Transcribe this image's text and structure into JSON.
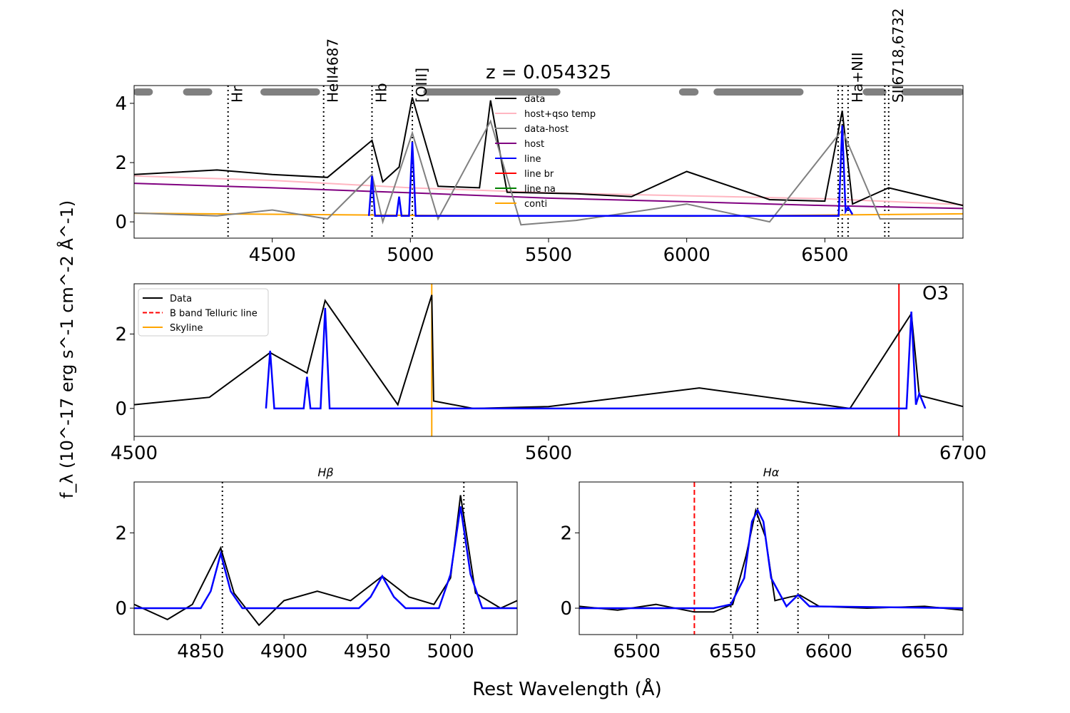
{
  "figure": {
    "ylabel": "f_λ (10^-17 erg s^-1 cm^-2 Å^-1)",
    "xlabel": "Rest Wavelength (Å)"
  },
  "chart_data": [
    {
      "type": "line",
      "title": "z = 0.054325",
      "xlim": [
        4000,
        7000
      ],
      "ylim": [
        -0.55,
        4.6
      ],
      "xticks": [
        4500,
        5000,
        5500,
        6000,
        6500
      ],
      "yticks": [
        0,
        2,
        4
      ],
      "legend_position": "upper-center",
      "legend": [
        {
          "name": "data",
          "color": "#000000"
        },
        {
          "name": "host+qso temp",
          "color": "#ffb6c1"
        },
        {
          "name": "data-host",
          "color": "#808080"
        },
        {
          "name": "host",
          "color": "#800080"
        },
        {
          "name": "line",
          "color": "#0000ff"
        },
        {
          "name": "line br",
          "color": "#ff0000"
        },
        {
          "name": "line na",
          "color": "#008000"
        },
        {
          "name": "conti",
          "color": "#ffa500"
        }
      ],
      "line_markers": [
        {
          "label": "Hr",
          "x": [
            4340
          ]
        },
        {
          "label": "HeII4687",
          "x": [
            4686
          ]
        },
        {
          "label": "Hb",
          "x": [
            4861
          ]
        },
        {
          "label": "[OIII]",
          "x": [
            5007
          ]
        },
        {
          "label": "Ha+NII",
          "x": [
            6548,
            6563,
            6584
          ]
        },
        {
          "label": "SII6718,6732",
          "x": [
            6717,
            6731
          ]
        }
      ],
      "masked_regions": [
        [
          4010,
          4055
        ],
        [
          4190,
          4270
        ],
        [
          4470,
          4660
        ],
        [
          5060,
          5530
        ],
        [
          5985,
          6030
        ],
        [
          6110,
          6410
        ],
        [
          6650,
          6710
        ],
        [
          6790,
          6990
        ]
      ],
      "series": [
        {
          "name": "conti",
          "color": "#ffa500",
          "x": [
            4000,
            5000,
            6000,
            7000
          ],
          "y": [
            0.29,
            0.22,
            0.19,
            0.27
          ]
        },
        {
          "name": "host",
          "color": "#800080",
          "x": [
            4000,
            4500,
            5000,
            5500,
            6000,
            6500,
            7000
          ],
          "y": [
            1.3,
            1.15,
            0.98,
            0.8,
            0.68,
            0.55,
            0.45
          ]
        },
        {
          "name": "host+qso temp",
          "color": "#ffb6c1",
          "x": [
            4000,
            4500,
            5000,
            5500,
            6000,
            6500,
            7000
          ],
          "y": [
            1.55,
            1.4,
            1.15,
            0.98,
            0.88,
            0.78,
            0.58
          ]
        },
        {
          "name": "data",
          "color": "#000000",
          "x": [
            4000,
            4300,
            4500,
            4700,
            4861,
            4900,
            4959,
            5007,
            5100,
            5250,
            5290,
            5350,
            5600,
            5800,
            6000,
            6300,
            6500,
            6563,
            6600,
            6731,
            7000
          ],
          "y": [
            1.6,
            1.75,
            1.6,
            1.5,
            2.75,
            1.35,
            1.85,
            4.2,
            1.2,
            1.15,
            4.1,
            1.0,
            0.95,
            0.85,
            1.7,
            0.75,
            0.7,
            3.75,
            0.6,
            1.15,
            0.55
          ]
        },
        {
          "name": "data-host",
          "color": "#808080",
          "x": [
            4000,
            4300,
            4500,
            4700,
            4861,
            4900,
            5007,
            5100,
            5290,
            5400,
            5600,
            6000,
            6300,
            6563,
            6700,
            7000
          ],
          "y": [
            0.3,
            0.2,
            0.4,
            0.1,
            1.6,
            0.0,
            3.0,
            0.1,
            3.4,
            -0.1,
            0.05,
            0.6,
            0.0,
            3.1,
            0.1,
            0.1
          ]
        },
        {
          "name": "line",
          "color": "#0000ff",
          "x": [
            4850,
            4861,
            4872,
            4950,
            4959,
            4968,
            4995,
            5007,
            5019,
            6550,
            6563,
            6575,
            6584,
            6600
          ],
          "y": [
            0.2,
            1.55,
            0.2,
            0.2,
            0.85,
            0.2,
            0.2,
            2.7,
            0.2,
            0.2,
            3.25,
            0.35,
            0.5,
            0.25
          ]
        }
      ]
    },
    {
      "type": "line",
      "title": "O3",
      "xlim": [
        4500,
        6700
      ],
      "ylim": [
        -0.75,
        3.35
      ],
      "xticks": [
        4500,
        5600,
        6700
      ],
      "yticks": [
        0,
        2
      ],
      "legend_position": "upper-left",
      "legend": [
        {
          "name": "Data",
          "color": "#000000"
        },
        {
          "name": "B band Telluric line",
          "color": "#ff0000"
        },
        {
          "name": "Skyline",
          "color": "#ffa500"
        }
      ],
      "vlines": [
        {
          "name": "B band Telluric line",
          "x": 6530,
          "color": "#ff0000"
        },
        {
          "name": "Skyline",
          "x": 5290,
          "color": "#ffa500"
        }
      ],
      "series": [
        {
          "name": "Data",
          "color": "#000000",
          "x": [
            4500,
            4700,
            4861,
            4959,
            5007,
            5200,
            5290,
            5295,
            5400,
            5600,
            6000,
            6400,
            6563,
            6584,
            6700
          ],
          "y": [
            0.1,
            0.3,
            1.5,
            0.95,
            2.9,
            0.1,
            3.05,
            0.2,
            0.0,
            0.05,
            0.55,
            0.0,
            2.55,
            0.35,
            0.05
          ]
        },
        {
          "name": "line",
          "color": "#0000ff",
          "x": [
            4850,
            4861,
            4872,
            4950,
            4959,
            4968,
            4995,
            5007,
            5019,
            6550,
            6563,
            6575,
            6584,
            6600
          ],
          "y": [
            0.0,
            1.55,
            0.0,
            0.0,
            0.85,
            0.0,
            0.0,
            2.7,
            0.0,
            0.0,
            2.6,
            0.1,
            0.4,
            0.0
          ]
        }
      ]
    },
    {
      "type": "line",
      "title": "Hβ",
      "xlim": [
        4810,
        5040
      ],
      "ylim": [
        -0.7,
        3.35
      ],
      "xticks": [
        4850,
        4900,
        4950,
        5000
      ],
      "yticks": [
        0,
        2
      ],
      "vlines": [
        {
          "x": 4863,
          "style": "dotted"
        },
        {
          "x": 5008,
          "style": "dotted"
        }
      ],
      "series": [
        {
          "name": "data",
          "color": "#000000",
          "x": [
            4810,
            4830,
            4845,
            4862,
            4870,
            4885,
            4900,
            4920,
            4940,
            4959,
            4975,
            4990,
            5000,
            5006,
            5015,
            5030,
            5040
          ],
          "y": [
            0.1,
            -0.3,
            0.1,
            1.6,
            0.4,
            -0.45,
            0.2,
            0.45,
            0.2,
            0.85,
            0.3,
            0.1,
            0.8,
            3.0,
            0.4,
            0.0,
            0.2
          ]
        },
        {
          "name": "line",
          "color": "#0000ff",
          "x": [
            4810,
            4850,
            4856,
            4862,
            4868,
            4875,
            4945,
            4952,
            4959,
            4966,
            4973,
            4993,
            5000,
            5006,
            5012,
            5019,
            5040
          ],
          "y": [
            0,
            0,
            0.45,
            1.45,
            0.45,
            0,
            0,
            0.3,
            0.85,
            0.3,
            0,
            0,
            0.9,
            2.7,
            0.9,
            0,
            0
          ]
        }
      ]
    },
    {
      "type": "line",
      "title": "Hα",
      "xlim": [
        6470,
        6670
      ],
      "ylim": [
        -0.7,
        3.35
      ],
      "xticks": [
        6500,
        6550,
        6600,
        6650
      ],
      "yticks": [
        0,
        2
      ],
      "vlines": [
        {
          "x": 6530,
          "color": "#ff0000",
          "style": "dashed"
        },
        {
          "x": 6549,
          "style": "dotted"
        },
        {
          "x": 6563,
          "style": "dotted"
        },
        {
          "x": 6584,
          "style": "dotted"
        }
      ],
      "series": [
        {
          "name": "data",
          "color": "#000000",
          "x": [
            6470,
            6490,
            6510,
            6530,
            6540,
            6550,
            6557,
            6562,
            6567,
            6572,
            6580,
            6585,
            6595,
            6620,
            6650,
            6670
          ],
          "y": [
            0.05,
            -0.05,
            0.1,
            -0.1,
            -0.1,
            0.1,
            1.4,
            2.6,
            1.9,
            0.2,
            0.3,
            0.35,
            0.05,
            0.0,
            0.05,
            -0.05
          ]
        },
        {
          "name": "line",
          "color": "#0000ff",
          "x": [
            6470,
            6540,
            6549,
            6556,
            6560,
            6563,
            6566,
            6570,
            6578,
            6584,
            6590,
            6670
          ],
          "y": [
            0,
            0,
            0.1,
            0.8,
            2.3,
            2.6,
            2.3,
            0.8,
            0.05,
            0.35,
            0.05,
            0
          ]
        }
      ]
    }
  ]
}
